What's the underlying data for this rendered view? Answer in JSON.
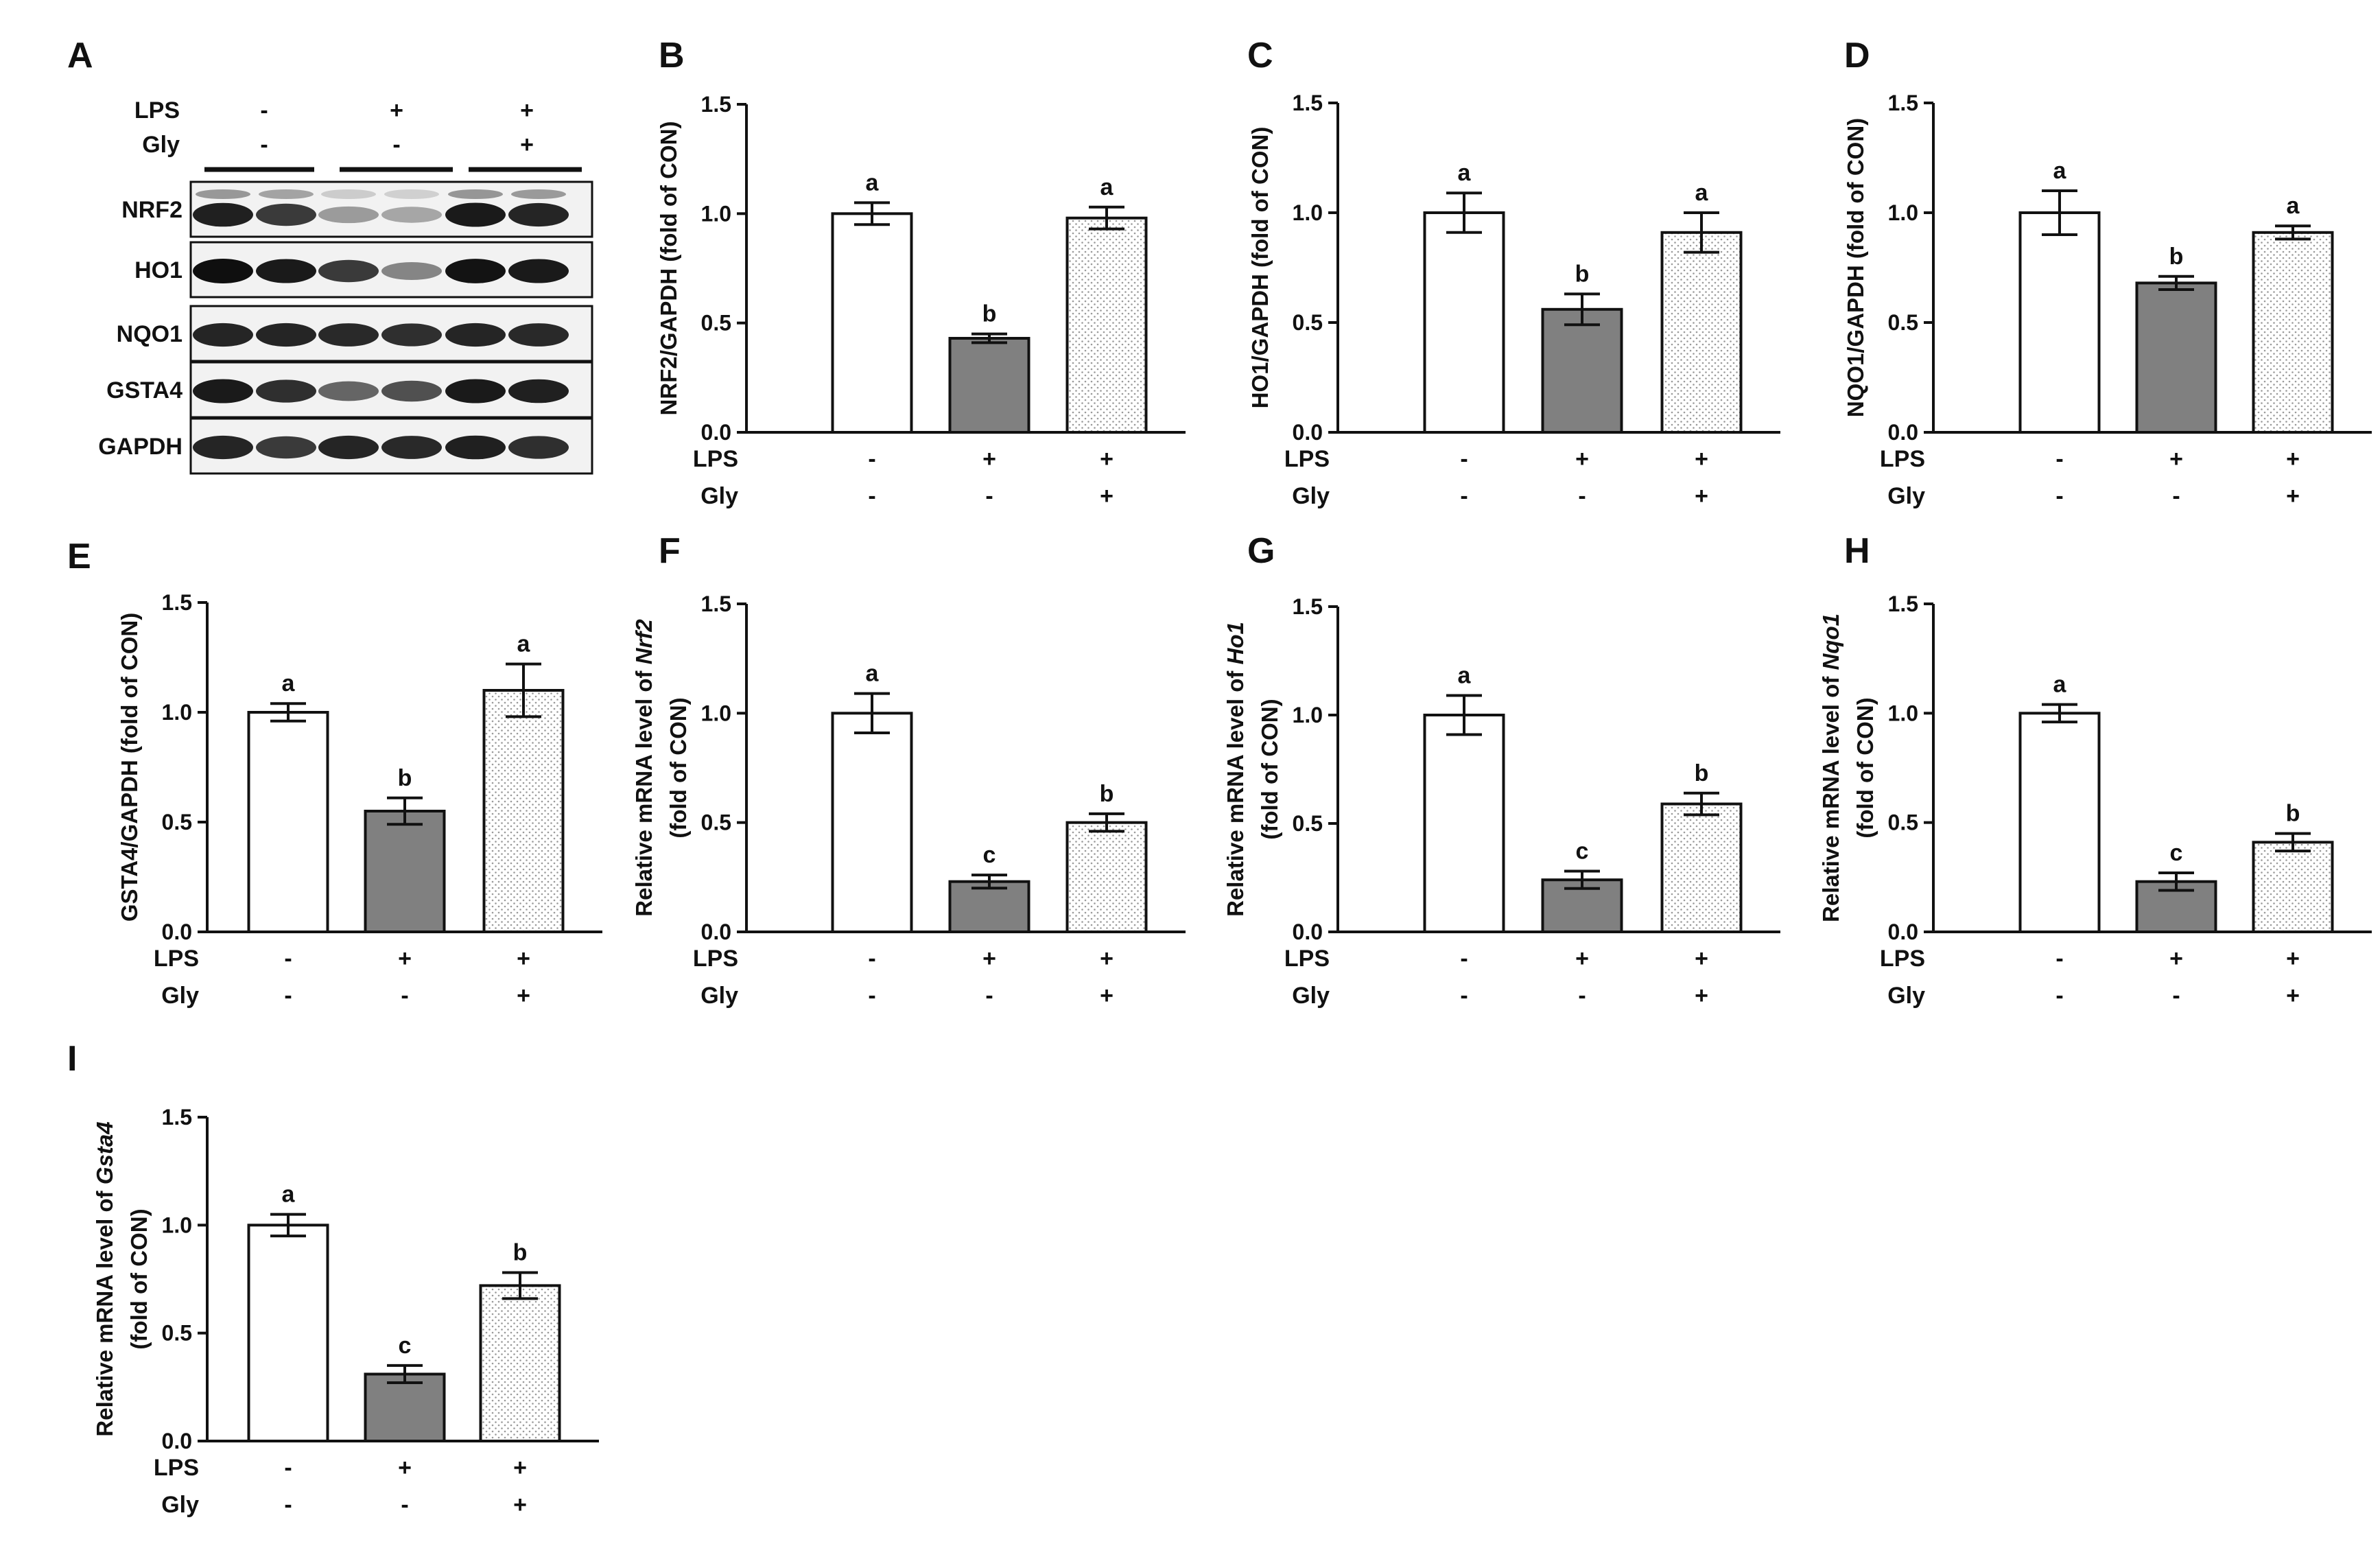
{
  "figure": {
    "condition_rows": [
      {
        "label": "LPS",
        "signs": [
          "-",
          "+",
          "+"
        ]
      },
      {
        "label": "Gly",
        "signs": [
          "-",
          "-",
          "+"
        ]
      }
    ],
    "bar_styles": [
      {
        "fill": "#ffffff",
        "pattern": "none"
      },
      {
        "fill": "#808080",
        "pattern": "none"
      },
      {
        "fill": "#ffffff",
        "pattern": "dots"
      }
    ]
  },
  "western_blot": {
    "panel": "A",
    "header": [
      {
        "label": "LPS",
        "signs": [
          "-",
          "+",
          "+"
        ]
      },
      {
        "label": "Gly",
        "signs": [
          "-",
          "-",
          "+"
        ]
      }
    ],
    "bands": [
      "NRF2",
      "HO1",
      "NQO1",
      "GSTA4",
      "GAPDH"
    ]
  },
  "chart_data": [
    {
      "panel": "B",
      "type": "bar",
      "ylabel": "NRF2/GAPDH (fold of CON)",
      "ylabel_lines": [
        "NRF2/GAPDH (fold of CON)"
      ],
      "ylabel_italic": "",
      "ylim": [
        0,
        1.5
      ],
      "yticks": [
        "0.0",
        "0.5",
        "1.0",
        "1.5"
      ],
      "values": [
        1.0,
        0.43,
        0.98
      ],
      "errors": [
        0.05,
        0.02,
        0.05
      ],
      "letters": [
        "a",
        "b",
        "a"
      ]
    },
    {
      "panel": "C",
      "type": "bar",
      "ylabel": "HO1/GAPDH (fold of CON)",
      "ylabel_lines": [
        "HO1/GAPDH (fold of CON)"
      ],
      "ylabel_italic": "",
      "ylim": [
        0,
        1.5
      ],
      "yticks": [
        "0.0",
        "0.5",
        "1.0",
        "1.5"
      ],
      "values": [
        1.0,
        0.56,
        0.91
      ],
      "errors": [
        0.09,
        0.07,
        0.09
      ],
      "letters": [
        "a",
        "b",
        "a"
      ]
    },
    {
      "panel": "D",
      "type": "bar",
      "ylabel": "NQO1/GAPDH (fold of CON)",
      "ylabel_lines": [
        "NQO1/GAPDH (fold of CON)"
      ],
      "ylabel_italic": "",
      "ylim": [
        0,
        1.5
      ],
      "yticks": [
        "0.0",
        "0.5",
        "1.0",
        "1.5"
      ],
      "values": [
        1.0,
        0.68,
        0.91
      ],
      "errors": [
        0.1,
        0.03,
        0.03
      ],
      "letters": [
        "a",
        "b",
        "a"
      ]
    },
    {
      "panel": "E",
      "type": "bar",
      "ylabel": "GSTA4/GAPDH (fold of CON)",
      "ylabel_lines": [
        "GSTA4/GAPDH (fold of CON)"
      ],
      "ylabel_italic": "",
      "ylim": [
        0,
        1.5
      ],
      "yticks": [
        "0.0",
        "0.5",
        "1.0",
        "1.5"
      ],
      "values": [
        1.0,
        0.55,
        1.1
      ],
      "errors": [
        0.04,
        0.06,
        0.12
      ],
      "letters": [
        "a",
        "b",
        "a"
      ]
    },
    {
      "panel": "F",
      "type": "bar",
      "ylabel": "Relative mRNA level of Nrf2 (fold of CON)",
      "ylabel_lines": [
        "Relative mRNA level of ",
        "(fold of CON)"
      ],
      "ylabel_italic": "Nrf2",
      "ylim": [
        0,
        1.5
      ],
      "yticks": [
        "0.0",
        "0.5",
        "1.0",
        "1.5"
      ],
      "values": [
        1.0,
        0.23,
        0.5
      ],
      "errors": [
        0.09,
        0.03,
        0.04
      ],
      "letters": [
        "a",
        "c",
        "b"
      ]
    },
    {
      "panel": "G",
      "type": "bar",
      "ylabel": "Relative  mRNA level of Ho1 (fold of CON)",
      "ylabel_lines": [
        "Relative  mRNA level of ",
        "(fold of CON)"
      ],
      "ylabel_italic": "Ho1",
      "ylim": [
        0,
        1.5
      ],
      "yticks": [
        "0.0",
        "0.5",
        "1.0",
        "1.5"
      ],
      "values": [
        1.0,
        0.24,
        0.59
      ],
      "errors": [
        0.09,
        0.04,
        0.05
      ],
      "letters": [
        "a",
        "c",
        "b"
      ]
    },
    {
      "panel": "H",
      "type": "bar",
      "ylabel": "Relative mRNA level of Nqo1 (fold of CON)",
      "ylabel_lines": [
        "Relative mRNA level of ",
        "(fold of CON)"
      ],
      "ylabel_italic": "Nqo1",
      "ylim": [
        0,
        1.5
      ],
      "yticks": [
        "0.0",
        "0.5",
        "1.0",
        "1.5"
      ],
      "values": [
        1.0,
        0.23,
        0.41
      ],
      "errors": [
        0.04,
        0.04,
        0.04
      ],
      "letters": [
        "a",
        "c",
        "b"
      ]
    },
    {
      "panel": "I",
      "type": "bar",
      "ylabel": "Relative mRNA level of Gsta4 (fold of CON)",
      "ylabel_lines": [
        "Relative mRNA level of ",
        "(fold of CON)"
      ],
      "ylabel_italic": "Gsta4",
      "ylim": [
        0,
        1.5
      ],
      "yticks": [
        "0.0",
        "0.5",
        "1.0",
        "1.5"
      ],
      "values": [
        1.0,
        0.31,
        0.72
      ],
      "errors": [
        0.05,
        0.04,
        0.06
      ],
      "letters": [
        "a",
        "c",
        "b"
      ]
    }
  ]
}
